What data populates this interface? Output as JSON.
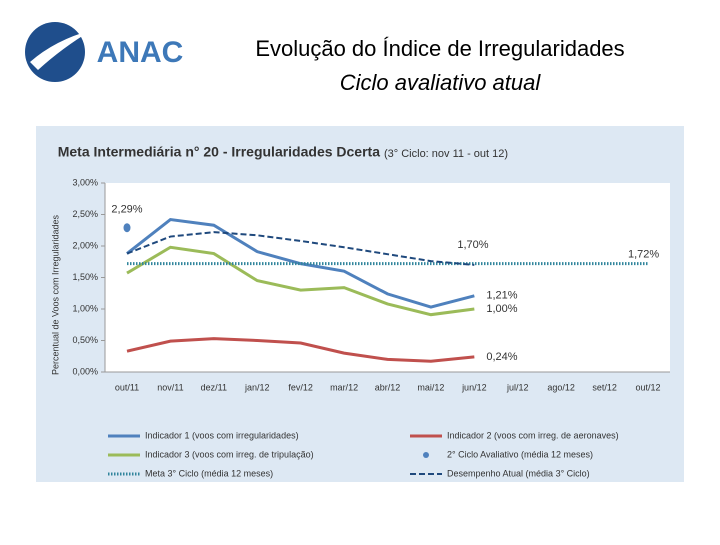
{
  "logo": {
    "text": "ANAC"
  },
  "header": {
    "title": "Evolução do Índice de Irregularidades",
    "subtitle": "Ciclo avaliativo atual"
  },
  "chart_data": {
    "type": "line",
    "title": "Meta Intermediária n° 20 - Irregularidades Dcerta",
    "subtitle": "(3° Ciclo: nov 11 - out 12)",
    "y_label": "Percentual de Voos com Irregularidades",
    "categories": [
      "out/11",
      "nov/11",
      "dez/11",
      "jan/12",
      "fev/12",
      "mar/12",
      "abr/12",
      "mai/12",
      "jun/12",
      "jul/12",
      "ago/12",
      "set/12",
      "out/12"
    ],
    "ylim": [
      0,
      3
    ],
    "yticks": [
      {
        "value": 0,
        "label": "0,00%"
      },
      {
        "value": 0.5,
        "label": "0,50%"
      },
      {
        "value": 1,
        "label": "1,00%"
      },
      {
        "value": 1.5,
        "label": "1,50%"
      },
      {
        "value": 2,
        "label": "2,00%"
      },
      {
        "value": 2.5,
        "label": "2,50%"
      },
      {
        "value": 3,
        "label": "3,00%"
      }
    ],
    "legend": "bottom",
    "series": [
      {
        "name": "Indicador 1 (voos com irregularidades)",
        "color": "#4f81bd",
        "style": "solid",
        "values": [
          1.88,
          2.42,
          2.33,
          1.91,
          1.72,
          1.6,
          1.24,
          1.03,
          1.21,
          null,
          null,
          null,
          null
        ],
        "value_labels": [
          null,
          null,
          null,
          null,
          null,
          null,
          null,
          null,
          "1,21%",
          null,
          null,
          null,
          null
        ]
      },
      {
        "name": "Indicador 2 (voos com irreg. de aeronaves)",
        "color": "#c0504d",
        "style": "solid",
        "values": [
          0.33,
          0.49,
          0.53,
          0.5,
          0.46,
          0.3,
          0.2,
          0.17,
          0.24,
          null,
          null,
          null,
          null
        ],
        "value_labels": [
          null,
          null,
          null,
          null,
          null,
          null,
          null,
          null,
          "0,24%",
          null,
          null,
          null,
          null
        ]
      },
      {
        "name": "Indicador 3 (voos com irreg. de tripulação)",
        "color": "#9bbb59",
        "style": "solid",
        "values": [
          1.57,
          1.98,
          1.88,
          1.45,
          1.3,
          1.34,
          1.08,
          0.91,
          1.0,
          null,
          null,
          null,
          null
        ],
        "value_labels": [
          null,
          null,
          null,
          null,
          null,
          null,
          null,
          null,
          "1,00%",
          null,
          null,
          null,
          null
        ]
      },
      {
        "name": "2° Ciclo Avaliativo (média 12 meses)",
        "color": "#4f81bd",
        "style": "marker",
        "values": [
          2.29,
          null,
          null,
          null,
          null,
          null,
          null,
          null,
          null,
          null,
          null,
          null,
          null
        ],
        "value_labels": [
          "2,29%",
          null,
          null,
          null,
          null,
          null,
          null,
          null,
          null,
          null,
          null,
          null,
          null
        ]
      },
      {
        "name": "Meta 3° Ciclo (média 12 meses)",
        "color": "#31859c",
        "style": "dotted",
        "values": [
          1.72,
          1.72,
          1.72,
          1.72,
          1.72,
          1.72,
          1.72,
          1.72,
          1.72,
          1.72,
          1.72,
          1.72,
          1.72
        ],
        "value_labels": [
          null,
          null,
          null,
          null,
          null,
          null,
          null,
          null,
          null,
          null,
          null,
          null,
          "1,72%"
        ]
      },
      {
        "name": "Desempenho Atual (média 3° Ciclo)",
        "color": "#1f497d",
        "style": "dashed",
        "values": [
          1.88,
          2.15,
          2.22,
          2.17,
          2.08,
          1.98,
          1.87,
          1.76,
          1.7,
          null,
          null,
          null,
          null
        ],
        "value_labels": [
          null,
          null,
          null,
          null,
          null,
          null,
          null,
          null,
          "1,70%",
          null,
          null,
          null,
          null
        ]
      }
    ]
  }
}
